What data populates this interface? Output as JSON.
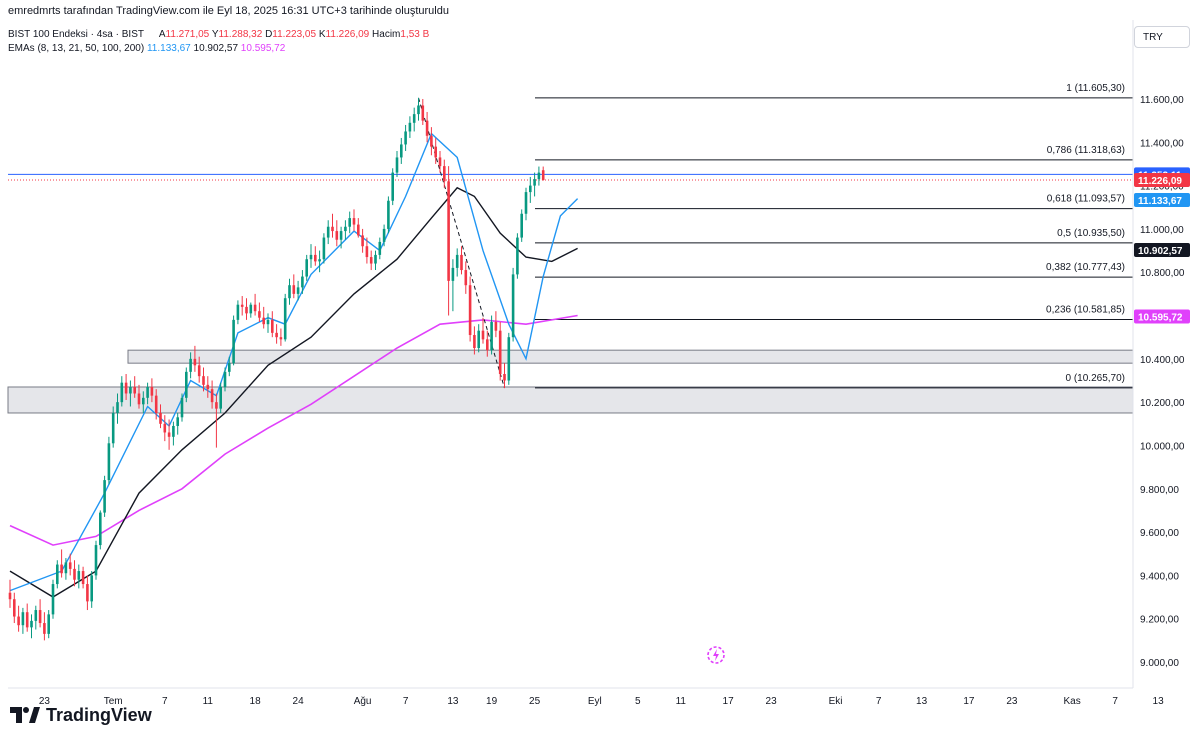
{
  "credit": "emredmrts tarafından TradingView.com ile Eyl 18, 2025 16:31 UTC+3 tarihinde oluşturuldu",
  "legend": {
    "symbol": "BIST 100 Endeksi · 4sa · BIST",
    "a_label": "A",
    "a_value": "11.271,05",
    "y_label": "Y",
    "y_value": "11.288,32",
    "d_label": "D",
    "d_value": "11.223,05",
    "k_label": "K",
    "k_value": "11.226,09",
    "hacim_label": "Hacim",
    "hacim_value": "1,53 B",
    "ema_label": "EMAs (8, 13, 21, 50, 100, 200)",
    "ema_values": [
      "11.133,67",
      "10.902,57",
      "10.595,72"
    ]
  },
  "currency": "TRY",
  "brand": "TradingView",
  "colors": {
    "up": "#089981",
    "down": "#f23645",
    "ema_fast": "#2196f3",
    "ema_mid": "#131722",
    "ema_slow": "#e040fb",
    "price_line": "#2962ff"
  },
  "chart_data": {
    "type": "candlestick",
    "symbol": "BIST 100 Endeksi",
    "interval": "4sa",
    "ylim": [
      8880,
      11780
    ],
    "y_ticks": [
      "11.600,00",
      "11.400,00",
      "11.200,00",
      "11.000,00",
      "10.800,00",
      "10.600,00",
      "10.400,00",
      "10.200,00",
      "10.000,00",
      "9.800,00",
      "9.600,00",
      "9.400,00",
      "9.200,00",
      "9.000,00"
    ],
    "y_tick_values": [
      11600,
      11400,
      11200,
      11000,
      10800,
      10600,
      10400,
      10200,
      10000,
      9800,
      9600,
      9400,
      9200,
      9000
    ],
    "x_ticks": [
      "23",
      "Tem",
      "7",
      "11",
      "18",
      "24",
      "Ağu",
      "7",
      "13",
      "19",
      "25",
      "Eyl",
      "5",
      "11",
      "17",
      "23",
      "Eki",
      "7",
      "13",
      "17",
      "23",
      "Kas",
      "7",
      "13"
    ],
    "x_tick_index": [
      8,
      24,
      36,
      46,
      57,
      67,
      82,
      92,
      103,
      112,
      122,
      136,
      146,
      156,
      167,
      177,
      192,
      202,
      212,
      223,
      233,
      247,
      257,
      267
    ],
    "candles": [
      [
        9320,
        9380,
        9250,
        9290
      ],
      [
        9290,
        9320,
        9180,
        9210
      ],
      [
        9210,
        9260,
        9140,
        9170
      ],
      [
        9170,
        9250,
        9130,
        9230
      ],
      [
        9230,
        9270,
        9140,
        9160
      ],
      [
        9160,
        9220,
        9110,
        9190
      ],
      [
        9190,
        9260,
        9150,
        9240
      ],
      [
        9240,
        9290,
        9160,
        9180
      ],
      [
        9180,
        9230,
        9100,
        9130
      ],
      [
        9130,
        9240,
        9110,
        9220
      ],
      [
        9220,
        9380,
        9200,
        9360
      ],
      [
        9360,
        9470,
        9340,
        9450
      ],
      [
        9450,
        9520,
        9390,
        9410
      ],
      [
        9410,
        9480,
        9380,
        9460
      ],
      [
        9460,
        9500,
        9400,
        9430
      ],
      [
        9430,
        9470,
        9350,
        9380
      ],
      [
        9380,
        9450,
        9340,
        9420
      ],
      [
        9420,
        9440,
        9340,
        9360
      ],
      [
        9360,
        9400,
        9240,
        9280
      ],
      [
        9280,
        9420,
        9250,
        9400
      ],
      [
        9400,
        9560,
        9380,
        9540
      ],
      [
        9540,
        9700,
        9520,
        9690
      ],
      [
        9690,
        9860,
        9670,
        9840
      ],
      [
        9840,
        10040,
        9820,
        10010
      ],
      [
        10010,
        10180,
        9990,
        10150
      ],
      [
        10150,
        10240,
        10100,
        10200
      ],
      [
        10200,
        10320,
        10180,
        10290
      ],
      [
        10290,
        10330,
        10210,
        10240
      ],
      [
        10240,
        10300,
        10180,
        10270
      ],
      [
        10270,
        10320,
        10220,
        10240
      ],
      [
        10240,
        10280,
        10170,
        10190
      ],
      [
        10190,
        10250,
        10150,
        10220
      ],
      [
        10220,
        10290,
        10190,
        10270
      ],
      [
        10270,
        10310,
        10200,
        10230
      ],
      [
        10230,
        10260,
        10120,
        10150
      ],
      [
        10150,
        10190,
        10080,
        10100
      ],
      [
        10100,
        10140,
        10020,
        10060
      ],
      [
        10060,
        10120,
        9980,
        10040
      ],
      [
        10040,
        10110,
        10000,
        10090
      ],
      [
        10090,
        10150,
        10050,
        10130
      ],
      [
        10130,
        10240,
        10110,
        10220
      ],
      [
        10220,
        10360,
        10200,
        10340
      ],
      [
        10340,
        10430,
        10310,
        10400
      ],
      [
        10400,
        10460,
        10340,
        10370
      ],
      [
        10370,
        10410,
        10290,
        10320
      ],
      [
        10320,
        10360,
        10250,
        10280
      ],
      [
        10280,
        10320,
        10220,
        10260
      ],
      [
        10260,
        10300,
        10170,
        10200
      ],
      [
        10200,
        10240,
        9990,
        10170
      ],
      [
        10170,
        10290,
        10150,
        10270
      ],
      [
        10270,
        10360,
        10250,
        10340
      ],
      [
        10340,
        10410,
        10320,
        10380
      ],
      [
        10380,
        10600,
        10370,
        10580
      ],
      [
        10580,
        10670,
        10560,
        10650
      ],
      [
        10650,
        10690,
        10600,
        10640
      ],
      [
        10640,
        10680,
        10580,
        10610
      ],
      [
        10610,
        10660,
        10590,
        10650
      ],
      [
        10650,
        10700,
        10600,
        10620
      ],
      [
        10620,
        10660,
        10570,
        10590
      ],
      [
        10590,
        10640,
        10540,
        10560
      ],
      [
        10560,
        10610,
        10520,
        10580
      ],
      [
        10580,
        10620,
        10500,
        10520
      ],
      [
        10520,
        10560,
        10470,
        10500
      ],
      [
        10500,
        10540,
        10460,
        10490
      ],
      [
        10490,
        10700,
        10480,
        10680
      ],
      [
        10680,
        10770,
        10650,
        10740
      ],
      [
        10740,
        10790,
        10680,
        10700
      ],
      [
        10700,
        10760,
        10670,
        10730
      ],
      [
        10730,
        10810,
        10700,
        10780
      ],
      [
        10780,
        10880,
        10760,
        10860
      ],
      [
        10860,
        10930,
        10820,
        10880
      ],
      [
        10880,
        10920,
        10830,
        10850
      ],
      [
        10850,
        10900,
        10800,
        10860
      ],
      [
        10860,
        10980,
        10840,
        10960
      ],
      [
        10960,
        11040,
        10930,
        11010
      ],
      [
        11010,
        11070,
        10960,
        10990
      ],
      [
        10990,
        11040,
        10920,
        10950
      ],
      [
        10950,
        11010,
        10910,
        10990
      ],
      [
        10990,
        11040,
        10950,
        11010
      ],
      [
        11010,
        11080,
        10980,
        11050
      ],
      [
        11050,
        11090,
        10990,
        11020
      ],
      [
        11020,
        11050,
        10960,
        10970
      ],
      [
        10970,
        11000,
        10890,
        10920
      ],
      [
        10920,
        10960,
        10840,
        10870
      ],
      [
        10870,
        10900,
        10810,
        10840
      ],
      [
        10840,
        10900,
        10810,
        10880
      ],
      [
        10880,
        10960,
        10860,
        10940
      ],
      [
        10940,
        11020,
        10920,
        11000
      ],
      [
        11000,
        11150,
        10980,
        11130
      ],
      [
        11130,
        11280,
        11110,
        11260
      ],
      [
        11260,
        11360,
        11240,
        11330
      ],
      [
        11330,
        11420,
        11300,
        11390
      ],
      [
        11390,
        11480,
        11360,
        11450
      ],
      [
        11450,
        11520,
        11420,
        11490
      ],
      [
        11490,
        11560,
        11450,
        11530
      ],
      [
        11530,
        11605,
        11500,
        11570
      ],
      [
        11570,
        11600,
        11480,
        11500
      ],
      [
        11500,
        11540,
        11400,
        11430
      ],
      [
        11430,
        11470,
        11340,
        11380
      ],
      [
        11380,
        11420,
        11300,
        11330
      ],
      [
        11330,
        11360,
        11260,
        11290
      ],
      [
        11290,
        11320,
        11190,
        11220
      ],
      [
        11220,
        11290,
        10600,
        10760
      ],
      [
        10760,
        10860,
        10620,
        10820
      ],
      [
        10820,
        10910,
        10780,
        10880
      ],
      [
        10880,
        10920,
        10790,
        10810
      ],
      [
        10810,
        10850,
        10700,
        10740
      ],
      [
        10740,
        10780,
        10480,
        10510
      ],
      [
        10510,
        10550,
        10420,
        10450
      ],
      [
        10450,
        10560,
        10430,
        10530
      ],
      [
        10530,
        10590,
        10470,
        10490
      ],
      [
        10490,
        10530,
        10410,
        10440
      ],
      [
        10440,
        10600,
        10420,
        10570
      ],
      [
        10570,
        10620,
        10500,
        10530
      ],
      [
        10530,
        10570,
        10300,
        10330
      ],
      [
        10330,
        10380,
        10265,
        10300
      ],
      [
        10300,
        10520,
        10280,
        10500
      ],
      [
        10500,
        10820,
        10480,
        10790
      ],
      [
        10790,
        10980,
        10770,
        10960
      ],
      [
        10960,
        11090,
        10940,
        11070
      ],
      [
        11070,
        11190,
        11040,
        11170
      ],
      [
        11170,
        11240,
        11120,
        11200
      ],
      [
        11200,
        11260,
        11150,
        11230
      ],
      [
        11230,
        11288,
        11200,
        11260
      ],
      [
        11271,
        11288,
        11223,
        11226
      ]
    ],
    "ema_fast": [
      [
        0,
        9330
      ],
      [
        12,
        9420
      ],
      [
        22,
        9780
      ],
      [
        32,
        10180
      ],
      [
        37,
        10090
      ],
      [
        42,
        10300
      ],
      [
        48,
        10230
      ],
      [
        53,
        10520
      ],
      [
        60,
        10590
      ],
      [
        64,
        10560
      ],
      [
        70,
        10790
      ],
      [
        80,
        10990
      ],
      [
        86,
        10900
      ],
      [
        92,
        11150
      ],
      [
        98,
        11440
      ],
      [
        104,
        11330
      ],
      [
        110,
        10900
      ],
      [
        116,
        10560
      ],
      [
        120,
        10400
      ],
      [
        124,
        10780
      ],
      [
        128,
        11060
      ],
      [
        132,
        11140
      ]
    ],
    "ema_mid": [
      [
        0,
        9420
      ],
      [
        10,
        9300
      ],
      [
        20,
        9420
      ],
      [
        30,
        9780
      ],
      [
        40,
        9980
      ],
      [
        50,
        10150
      ],
      [
        60,
        10370
      ],
      [
        70,
        10500
      ],
      [
        80,
        10700
      ],
      [
        90,
        10860
      ],
      [
        98,
        11050
      ],
      [
        104,
        11190
      ],
      [
        108,
        11150
      ],
      [
        114,
        10980
      ],
      [
        120,
        10870
      ],
      [
        126,
        10850
      ],
      [
        132,
        10910
      ]
    ],
    "ema_slow": [
      [
        0,
        9630
      ],
      [
        10,
        9540
      ],
      [
        20,
        9580
      ],
      [
        30,
        9700
      ],
      [
        40,
        9800
      ],
      [
        50,
        9960
      ],
      [
        60,
        10080
      ],
      [
        70,
        10190
      ],
      [
        80,
        10320
      ],
      [
        90,
        10450
      ],
      [
        100,
        10560
      ],
      [
        110,
        10580
      ],
      [
        120,
        10560
      ],
      [
        132,
        10600
      ]
    ],
    "fib_levels": [
      {
        "label": "1 (11.605,30)",
        "value": 11605.3
      },
      {
        "label": "0,786 (11.318,63)",
        "value": 11318.63
      },
      {
        "label": "0,618 (11.093,57)",
        "value": 11093.57
      },
      {
        "label": "0,5 (10.935,50)",
        "value": 10935.5
      },
      {
        "label": "0,382 (10.777,43)",
        "value": 10777.43
      },
      {
        "label": "0,236 (10.581,85)",
        "value": 10581.85
      },
      {
        "label": "0 (10.265,70)",
        "value": 10265.7
      }
    ],
    "zones": [
      {
        "from": 10380,
        "to": 10440
      },
      {
        "from": 10150,
        "to": 10270
      }
    ],
    "price_badges": [
      {
        "label": "11.252,11",
        "value": 11252.11,
        "color": "#2962ff"
      },
      {
        "label": "11.226,09",
        "value": 11226.09,
        "color": "#f23645"
      },
      {
        "label": "11.133,67",
        "value": 11133.67,
        "color": "#2196f3"
      },
      {
        "label": "10.902,57",
        "value": 10902.57,
        "color": "#131722"
      },
      {
        "label": "10.595,72",
        "value": 10595.72,
        "color": "#e040fb"
      }
    ],
    "hline_value": 11252.11,
    "close_value": 11226.09
  }
}
